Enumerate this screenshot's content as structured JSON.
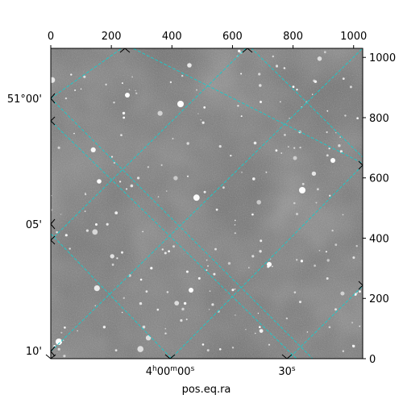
{
  "chart_data": {
    "type": "image",
    "title": "",
    "xlabel": "pos.eq.ra",
    "ylabel": "",
    "pixel_axes": {
      "x_ticks": [
        0,
        200,
        400,
        600,
        800,
        1000
      ],
      "y_ticks": [
        0,
        200,
        400,
        600,
        800,
        1000
      ],
      "xlim": [
        0,
        1030
      ],
      "ylim": [
        0,
        1030
      ]
    },
    "world_axes": {
      "dec_tick_labels": [
        "51°00'",
        "05'",
        "10'"
      ],
      "ra_tick_labels": [
        {
          "hour": "4",
          "h": "h",
          "min": "00",
          "m": "m",
          "sec": "00",
          "s": "s"
        },
        {
          "sec": "30",
          "s": "s"
        }
      ]
    },
    "grid": true,
    "grid_color": "#1fc7c7",
    "image_colormap": "gray",
    "background_level_color": "#6d6d6d"
  }
}
